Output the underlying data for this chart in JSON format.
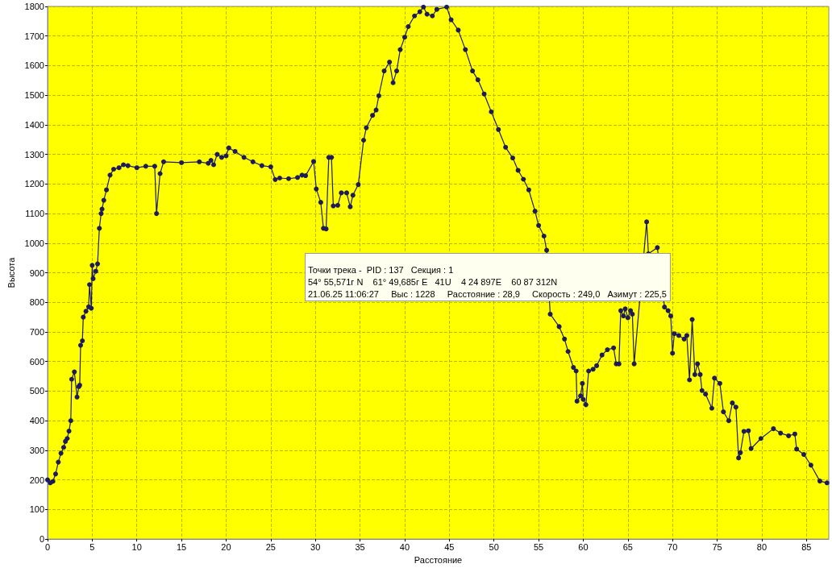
{
  "chart_data": {
    "type": "line",
    "xlabel": "Расстояние",
    "ylabel": "Высота",
    "xlim": [
      0,
      87.5
    ],
    "xticks": [
      0,
      5,
      10,
      15,
      20,
      25,
      30,
      35,
      40,
      45,
      50,
      55,
      60,
      65,
      70,
      75,
      80,
      85
    ],
    "ylim": [
      0,
      1800
    ],
    "yticks": [
      0,
      100,
      200,
      300,
      400,
      500,
      600,
      700,
      800,
      900,
      1000,
      1100,
      1200,
      1300,
      1400,
      1500,
      1600,
      1700,
      1800
    ],
    "grid": true,
    "marker": "circle",
    "line_style": "solid",
    "series": [
      {
        "color": "#1c1c5c",
        "x": [
          0,
          0.3,
          0.6,
          0.9,
          1.2,
          1.5,
          1.8,
          2.0,
          2.2,
          2.4,
          2.6,
          2.7,
          3.0,
          3.3,
          3.5,
          3.6,
          3.7,
          3.9,
          4.0,
          4.3,
          4.6,
          4.7,
          4.9,
          5.0,
          5.1,
          5.4,
          5.6,
          5.8,
          6.0,
          6.1,
          6.3,
          6.6,
          7.0,
          7.4,
          8.0,
          8.5,
          9.0,
          10,
          11,
          12,
          12.2,
          12.6,
          13,
          15,
          17,
          18,
          18.3,
          18.6,
          19,
          19.5,
          20,
          20.3,
          21,
          22,
          23,
          24,
          25,
          25.5,
          26,
          27,
          28,
          28.5,
          28.9,
          29.8,
          30.1,
          30.6,
          30.9,
          31.2,
          31.5,
          31.8,
          32.0,
          32.5,
          32.9,
          33.5,
          33.9,
          34.2,
          34.8,
          35.4,
          35.7,
          36.4,
          36.8,
          37.1,
          37.7,
          38.3,
          38.7,
          39.1,
          39.5,
          40.0,
          40.4,
          41.1,
          41.7,
          42.1,
          42.5,
          43.1,
          43.6,
          44.7,
          45.2,
          46.0,
          46.8,
          47.6,
          48.2,
          48.9,
          49.7,
          50.5,
          51.3,
          52.1,
          52.7,
          53.3,
          53.9,
          54.6,
          55.0,
          55.6,
          55.9,
          56.3,
          57.3,
          57.9,
          58.3,
          58.9,
          59.2,
          59.3,
          59.7,
          59.9,
          60.0,
          60.3,
          60.6,
          61.1,
          61.5,
          62.1,
          62.7,
          63.4,
          63.7,
          64.0,
          64.2,
          64.5,
          64.7,
          65.0,
          65.3,
          65.5,
          65.7,
          67.1,
          67.3,
          68.3,
          69.1,
          69.5,
          69.8,
          70.0,
          70.2,
          70.7,
          71.3,
          71.6,
          71.9,
          72.2,
          72.5,
          72.8,
          73.1,
          73.3,
          73.7,
          74.4,
          74.7,
          75.3,
          75.7,
          76.3,
          76.7,
          77.1,
          77.4,
          77.6,
          78.0,
          78.5,
          78.8,
          79.9,
          81.3,
          82.1,
          83.0,
          83.7,
          83.9,
          84.7,
          85.5,
          86.5,
          87.3
        ],
        "values": [
          200,
          190,
          195,
          220,
          260,
          290,
          310,
          330,
          340,
          365,
          400,
          540,
          565,
          480,
          515,
          520,
          655,
          670,
          750,
          770,
          785,
          860,
          780,
          925,
          880,
          905,
          930,
          1050,
          1100,
          1115,
          1145,
          1180,
          1230,
          1250,
          1255,
          1265,
          1262,
          1255,
          1260,
          1260,
          1100,
          1235,
          1275,
          1272,
          1275,
          1270,
          1280,
          1265,
          1300,
          1290,
          1295,
          1322,
          1310,
          1290,
          1275,
          1262,
          1258,
          1215,
          1220,
          1218,
          1222,
          1230,
          1228,
          1276,
          1183,
          1138,
          1050,
          1048,
          1290,
          1290,
          1126,
          1128,
          1170,
          1170,
          1123,
          1162,
          1198,
          1348,
          1390,
          1432,
          1450,
          1498,
          1582,
          1612,
          1542,
          1582,
          1654,
          1696,
          1732,
          1768,
          1782,
          1798,
          1774,
          1768,
          1790,
          1798,
          1755,
          1720,
          1654,
          1582,
          1552,
          1504,
          1444,
          1384,
          1324,
          1288,
          1246,
          1216,
          1180,
          1108,
          1060,
          1024,
          976,
          760,
          718,
          676,
          634,
          580,
          568,
          466,
          484,
          526,
          472,
          454,
          568,
          574,
          586,
          622,
          640,
          646,
          592,
          592,
          772,
          754,
          778,
          748,
          772,
          760,
          592,
          1072,
          964,
          985,
          784,
          772,
          754,
          628,
          694,
          688,
          676,
          688,
          538,
          742,
          556,
          592,
          556,
          502,
          490,
          442,
          544,
          526,
          430,
          400,
          460,
          446,
          274,
          292,
          364,
          366,
          306,
          340,
          373,
          358,
          349,
          355,
          304,
          286,
          250,
          196,
          190
        ]
      }
    ],
    "annotations": [
      "Точки трека -  PID : 137   Секция : 1\n54° 55,571г N    61° 49,685г E   41U    4 24 897E    60 87 312N\n21.06.25 11:06:27     Выс : 1228     Расстояние : 28,9     Скорость : 249,0   Азимут : 225,5"
    ]
  }
}
